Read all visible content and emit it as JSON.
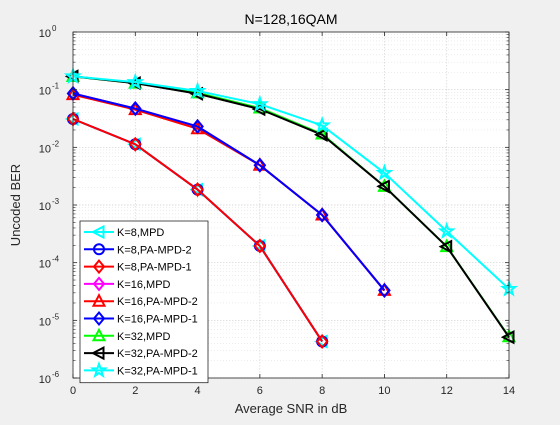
{
  "chart_data": {
    "type": "line",
    "title": "N=128,16QAM",
    "xlabel": "Average SNR in dB",
    "ylabel": "Uncoded BER",
    "yscale": "log",
    "xlim": [
      0,
      14
    ],
    "ylim": [
      1e-06,
      1
    ],
    "xticks": [
      0,
      2,
      4,
      6,
      8,
      10,
      12,
      14
    ],
    "xtick_labels": [
      "0",
      "2",
      "4",
      "6",
      "8",
      "10",
      "12",
      "14"
    ],
    "yticks": [
      {
        "value": 1,
        "base": "10",
        "exp": "0"
      },
      {
        "value": 0.1,
        "base": "10",
        "exp": "-1"
      },
      {
        "value": 0.01,
        "base": "10",
        "exp": "-2"
      },
      {
        "value": 0.001,
        "base": "10",
        "exp": "-3"
      },
      {
        "value": 0.0001,
        "base": "10",
        "exp": "-4"
      },
      {
        "value": 1e-05,
        "base": "10",
        "exp": "-5"
      },
      {
        "value": 1e-06,
        "base": "10",
        "exp": "-6"
      }
    ],
    "grid": true,
    "minor_grid": true,
    "legend_position": "bottom-left",
    "series": [
      {
        "name": "K=8,MPD",
        "color": "#00ffff",
        "marker": "triangle-left",
        "x": [
          0,
          2,
          4,
          6,
          8
        ],
        "y": [
          0.031,
          0.0113,
          0.00185,
          0.000195,
          4.3e-06
        ]
      },
      {
        "name": "K=8,PA-MPD-2",
        "color": "#0000ff",
        "marker": "circle",
        "x": [
          0,
          2,
          4,
          6,
          8
        ],
        "y": [
          0.031,
          0.0113,
          0.00185,
          0.000195,
          4.3e-06
        ]
      },
      {
        "name": "K=8,PA-MPD-1",
        "color": "#ff0000",
        "marker": "diamond",
        "x": [
          0,
          2,
          4,
          6,
          8
        ],
        "y": [
          0.031,
          0.0113,
          0.00185,
          0.000195,
          4.3e-06
        ]
      },
      {
        "name": "K=16,MPD",
        "color": "#ff00ff",
        "marker": "diamond",
        "x": [
          0,
          2,
          4,
          6,
          8,
          10
        ],
        "y": [
          0.086,
          0.047,
          0.023,
          0.0049,
          0.00067,
          3.3e-05
        ]
      },
      {
        "name": "K=16,PA-MPD-2",
        "color": "#ff0000",
        "marker": "triangle-up",
        "x": [
          0,
          2,
          4,
          6,
          8,
          10
        ],
        "y": [
          0.082,
          0.045,
          0.021,
          0.0049,
          0.00067,
          3.3e-05
        ]
      },
      {
        "name": "K=16,PA-MPD-1",
        "color": "#0000ff",
        "marker": "diamond",
        "x": [
          0,
          2,
          4,
          6,
          8,
          10
        ],
        "y": [
          0.086,
          0.047,
          0.023,
          0.0049,
          0.00067,
          3.3e-05
        ]
      },
      {
        "name": "K=32,MPD",
        "color": "#00ff00",
        "marker": "triangle-up",
        "x": [
          0,
          2,
          4,
          6,
          8,
          10,
          12,
          14
        ],
        "y": [
          0.17,
          0.13,
          0.088,
          0.048,
          0.017,
          0.0021,
          0.00019,
          5.2e-06
        ]
      },
      {
        "name": "K=32,PA-MPD-2",
        "color": "#000000",
        "marker": "triangle-left",
        "x": [
          0,
          2,
          4,
          6,
          8,
          10,
          12,
          14
        ],
        "y": [
          0.17,
          0.13,
          0.085,
          0.046,
          0.0165,
          0.0021,
          0.00019,
          5.1e-06
        ]
      },
      {
        "name": "K=32,PA-MPD-1",
        "color": "#00ffff",
        "marker": "star",
        "x": [
          0,
          2,
          4,
          6,
          8,
          10,
          12,
          14
        ],
        "y": [
          0.17,
          0.135,
          0.095,
          0.056,
          0.024,
          0.0036,
          0.00035,
          3.5e-05
        ]
      }
    ]
  }
}
